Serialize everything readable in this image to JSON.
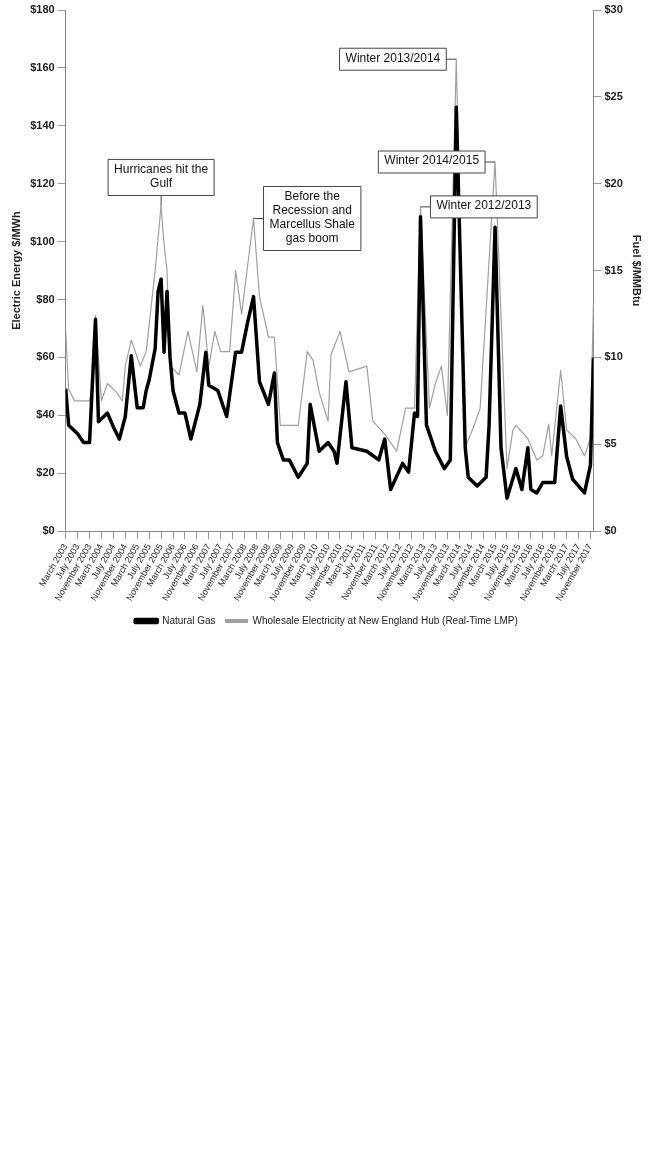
{
  "chart_data": {
    "type": "line",
    "ylabel": "Electric Energy $/MWh",
    "y2label": "Fuel $/MMBtu",
    "legend": "bottom",
    "grid": false,
    "marker": "none",
    "xlim": [
      "2003-03",
      "2017-12"
    ],
    "xticks": [
      {
        "value": "2003-03",
        "label": "March 2003"
      },
      {
        "value": "2003-07",
        "label": "July 2003"
      },
      {
        "value": "2003-11",
        "label": "November 2003"
      },
      {
        "value": "2004-03",
        "label": "March 2004"
      },
      {
        "value": "2004-07",
        "label": "July 2004"
      },
      {
        "value": "2004-11",
        "label": "November 2004"
      },
      {
        "value": "2005-03",
        "label": "March 2005"
      },
      {
        "value": "2005-07",
        "label": "July 2005"
      },
      {
        "value": "2005-11",
        "label": "November 2005"
      },
      {
        "value": "2006-03",
        "label": "March 2006"
      },
      {
        "value": "2006-07",
        "label": "July 2006"
      },
      {
        "value": "2006-11",
        "label": "November 2006"
      },
      {
        "value": "2007-03",
        "label": "March 2007"
      },
      {
        "value": "2007-07",
        "label": "July 2007"
      },
      {
        "value": "2007-11",
        "label": "November 2007"
      },
      {
        "value": "2008-03",
        "label": "March 2008"
      },
      {
        "value": "2008-07",
        "label": "July 2008"
      },
      {
        "value": "2008-11",
        "label": "November 2008"
      },
      {
        "value": "2009-03",
        "label": "March 2009"
      },
      {
        "value": "2009-07",
        "label": "July 2009"
      },
      {
        "value": "2009-11",
        "label": "November 2009"
      },
      {
        "value": "2010-03",
        "label": "March 2010"
      },
      {
        "value": "2010-07",
        "label": "July 2010"
      },
      {
        "value": "2010-11",
        "label": "November 2010"
      },
      {
        "value": "2011-03",
        "label": "March 2011"
      },
      {
        "value": "2011-07",
        "label": "July 2011"
      },
      {
        "value": "2011-11",
        "label": "November 2011"
      },
      {
        "value": "2012-03",
        "label": "March 2012"
      },
      {
        "value": "2012-07",
        "label": "July 2012"
      },
      {
        "value": "2012-11",
        "label": "November 2012"
      },
      {
        "value": "2013-03",
        "label": "March 2013"
      },
      {
        "value": "2013-07",
        "label": "July 2013"
      },
      {
        "value": "2013-11",
        "label": "November 2013"
      },
      {
        "value": "2014-03",
        "label": "March 2014"
      },
      {
        "value": "2014-07",
        "label": "July 2014"
      },
      {
        "value": "2014-11",
        "label": "November 2014"
      },
      {
        "value": "2015-03",
        "label": "March 2015"
      },
      {
        "value": "2015-07",
        "label": "July 2015"
      },
      {
        "value": "2015-11",
        "label": "November 2015"
      },
      {
        "value": "2016-03",
        "label": "March 2016"
      },
      {
        "value": "2016-07",
        "label": "July 2016"
      },
      {
        "value": "2016-11",
        "label": "November 2016"
      },
      {
        "value": "2017-03",
        "label": "March 2017"
      },
      {
        "value": "2017-07",
        "label": "July 2017"
      },
      {
        "value": "2017-11",
        "label": "November 2017"
      }
    ],
    "ylim": [
      0,
      180
    ],
    "yticks": [
      {
        "value": 0,
        "label": "$0"
      },
      {
        "value": 20,
        "label": "$20"
      },
      {
        "value": 40,
        "label": "$40"
      },
      {
        "value": 60,
        "label": "$60"
      },
      {
        "value": 80,
        "label": "$80"
      },
      {
        "value": 100,
        "label": "$100"
      },
      {
        "value": 120,
        "label": "$120"
      },
      {
        "value": 140,
        "label": "$140"
      },
      {
        "value": 160,
        "label": "$160"
      },
      {
        "value": 180,
        "label": "$180"
      }
    ],
    "y2lim": [
      0,
      30
    ],
    "y2ticks": [
      {
        "value": 0,
        "label": "$0"
      },
      {
        "value": 5,
        "label": "$5"
      },
      {
        "value": 10,
        "label": "$10"
      },
      {
        "value": 15,
        "label": "$15"
      },
      {
        "value": 20,
        "label": "$20"
      },
      {
        "value": 25,
        "label": "$25"
      },
      {
        "value": 30,
        "label": "$30"
      }
    ],
    "series": [
      {
        "name": "Wholesale Electricity at New England Hub (Real-Time LMP)",
        "color": "#a0a0a0",
        "x": [
          "2003-03",
          "2003-04",
          "2003-06",
          "2003-09",
          "2003-11",
          "2003-12",
          "2004-01",
          "2004-03",
          "2004-05",
          "2004-08",
          "2004-10",
          "2004-11",
          "2005-01",
          "2005-04",
          "2005-06",
          "2005-09",
          "2005-11",
          "2005-12",
          "2006-01",
          "2006-02",
          "2006-05",
          "2006-08",
          "2006-11",
          "2007-01",
          "2007-03",
          "2007-05",
          "2007-07",
          "2007-10",
          "2007-12",
          "2008-02",
          "2008-06",
          "2008-08",
          "2008-11",
          "2009-01",
          "2009-03",
          "2009-06",
          "2009-09",
          "2009-12",
          "2010-02",
          "2010-04",
          "2010-07",
          "2010-08",
          "2010-11",
          "2011-02",
          "2011-08",
          "2011-10",
          "2012-02",
          "2012-06",
          "2012-09",
          "2012-12",
          "2013-02",
          "2013-05",
          "2013-07",
          "2013-09",
          "2013-11",
          "2014-02",
          "2014-05",
          "2014-08",
          "2014-10",
          "2015-03",
          "2015-07",
          "2015-09",
          "2015-10",
          "2016-02",
          "2016-05",
          "2016-07",
          "2016-09",
          "2016-10",
          "2017-01",
          "2017-03",
          "2017-06",
          "2017-09",
          "2017-11",
          "2017-12"
        ],
        "values": [
          69,
          49,
          45,
          45,
          45,
          51,
          74.5,
          45,
          51,
          48,
          45,
          57,
          66,
          57,
          62,
          90,
          112.5,
          99,
          90,
          57,
          54,
          69,
          55,
          78,
          57,
          69,
          62,
          62,
          90,
          75,
          108,
          81,
          67,
          67,
          36.5,
          36.5,
          36.5,
          62,
          59,
          48,
          38,
          61,
          69,
          55,
          57,
          38,
          33.5,
          27.6,
          42.5,
          42.5,
          112,
          42.5,
          51,
          57,
          40,
          163,
          29,
          36.5,
          42.5,
          127.5,
          21.6,
          35,
          36.5,
          32,
          24.6,
          26,
          37,
          26,
          55.5,
          35,
          32,
          26,
          32,
          79
        ]
      },
      {
        "name": "Natural Gas",
        "color": "#000000",
        "axis": "y2",
        "x": [
          "2003-03",
          "2003-04",
          "2003-07",
          "2003-09",
          "2003-11",
          "2004-01",
          "2004-02",
          "2004-05",
          "2004-07",
          "2004-09",
          "2004-11",
          "2005-01",
          "2005-03",
          "2005-05",
          "2005-06",
          "2005-07",
          "2005-09",
          "2005-10",
          "2005-11",
          "2005-12",
          "2006-01",
          "2006-02",
          "2006-03",
          "2006-05",
          "2006-07",
          "2006-09",
          "2006-12",
          "2007-02",
          "2007-03",
          "2007-06",
          "2007-09",
          "2007-12",
          "2008-02",
          "2008-04",
          "2008-06",
          "2008-08",
          "2008-11",
          "2009-01",
          "2009-02",
          "2009-04",
          "2009-06",
          "2009-09",
          "2009-12",
          "2010-01",
          "2010-04",
          "2010-07",
          "2010-09",
          "2010-10",
          "2011-01",
          "2011-03",
          "2011-08",
          "2011-12",
          "2012-02",
          "2012-04",
          "2012-08",
          "2012-10",
          "2012-12",
          "2013-01",
          "2013-02",
          "2013-04",
          "2013-07",
          "2013-10",
          "2013-12",
          "2014-02",
          "2014-05",
          "2014-06",
          "2014-09",
          "2014-12",
          "2015-01",
          "2015-03",
          "2015-05",
          "2015-07",
          "2015-10",
          "2015-12",
          "2016-02",
          "2016-03",
          "2016-05",
          "2016-07",
          "2016-11",
          "2017-01",
          "2017-03",
          "2017-05",
          "2017-09",
          "2017-11",
          "2017-12"
        ],
        "values": [
          8.2,
          6.1,
          5.6,
          5.1,
          5.1,
          12.2,
          6.3,
          6.8,
          6.0,
          5.3,
          6.6,
          10.1,
          7.1,
          7.1,
          8.1,
          8.7,
          10.5,
          13.8,
          14.5,
          10.3,
          13.8,
          10.0,
          8.1,
          6.8,
          6.8,
          5.3,
          7.3,
          10.3,
          8.4,
          8.1,
          6.6,
          10.3,
          10.3,
          12.0,
          13.5,
          8.6,
          7.3,
          9.1,
          5.1,
          4.1,
          4.1,
          3.1,
          3.9,
          7.3,
          4.6,
          5.1,
          4.6,
          3.9,
          8.6,
          4.8,
          4.6,
          4.1,
          5.3,
          2.4,
          3.9,
          3.4,
          6.8,
          6.6,
          18.1,
          6.1,
          4.6,
          3.6,
          4.1,
          24.4,
          4.8,
          3.1,
          2.6,
          3.1,
          6.1,
          17.5,
          4.8,
          1.9,
          3.6,
          2.4,
          4.8,
          2.4,
          2.2,
          2.8,
          2.8,
          7.2,
          4.3,
          3.0,
          2.2,
          3.8,
          10.0
        ]
      }
    ],
    "annotations": [
      {
        "text": "Hurricanes hit the Gulf",
        "x": "2005-11",
        "y": 112.5
      },
      {
        "text": "Before the Recession and Marcellus Shale gas boom",
        "x": "2008-06",
        "y": 108
      },
      {
        "text": "Winter 2012/2013",
        "x": "2013-02",
        "y": 112
      },
      {
        "text": "Winter 2013/2014",
        "x": "2014-02",
        "y": 163
      },
      {
        "text": "Winter 2014/2015",
        "x": "2015-03",
        "y": 127.5
      }
    ]
  }
}
